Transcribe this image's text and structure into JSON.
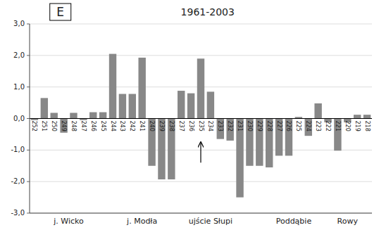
{
  "chart_data": {
    "type": "bar",
    "title": "E",
    "subtitle": "1961-2003",
    "categories": [
      "252",
      "251",
      "250",
      "249",
      "248",
      "247",
      "246",
      "245",
      "244",
      "243",
      "242",
      "241",
      "240",
      "239",
      "238",
      "237",
      "236",
      "235",
      "234",
      "233",
      "232",
      "231",
      "230",
      "229",
      "228",
      "227",
      "226",
      "225",
      "224",
      "223",
      "222",
      "221",
      "220",
      "219",
      "218"
    ],
    "values": [
      -0.05,
      0.65,
      0.18,
      -0.45,
      0.18,
      -0.05,
      0.2,
      0.2,
      2.05,
      0.78,
      0.78,
      1.93,
      -1.5,
      -1.93,
      -1.93,
      0.88,
      0.8,
      1.9,
      0.85,
      -0.65,
      -0.7,
      -2.5,
      -1.5,
      -1.5,
      -1.55,
      -1.18,
      -1.18,
      0.05,
      -0.55,
      0.48,
      -0.12,
      -1.02,
      -0.12,
      0.12,
      0.12
    ],
    "color": "#888888",
    "ylim": [
      -3.0,
      3.0
    ],
    "yticks": [
      {
        "value": -3.0,
        "label": "-3,0"
      },
      {
        "value": -2.0,
        "label": "-2,0"
      },
      {
        "value": -1.0,
        "label": "-1,0"
      },
      {
        "value": 0.0,
        "label": "0,0"
      },
      {
        "value": 1.0,
        "label": "1,0"
      },
      {
        "value": 2.0,
        "label": "2,0"
      },
      {
        "value": 3.0,
        "label": "3,0"
      }
    ],
    "grid": true,
    "sections": [
      {
        "text": "j. Wicko",
        "from": "252",
        "to": "245"
      },
      {
        "text": "j. Modła",
        "from": "244",
        "to": "238"
      },
      {
        "text": "ujście Słupi",
        "from": "237",
        "to": "231"
      },
      {
        "text": "Poddąbie",
        "from": "228",
        "to": "223"
      },
      {
        "text": "Rowy",
        "from": "222",
        "to": "218"
      }
    ],
    "annotations": [
      {
        "category": "235",
        "y_from": -1.4,
        "y_to": -0.75
      }
    ]
  }
}
